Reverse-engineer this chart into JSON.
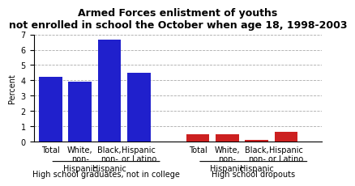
{
  "title_line1": "Armed Forces enlistment of youths",
  "title_line2": "not enrolled in school the October when age 18, 1998-2003",
  "groups": [
    {
      "label": "High school graduates, not in college",
      "categories": [
        "Total",
        "White,\nnon-\nHispanic",
        "Black,\nnon-\nHispanic",
        "Hispanic\nor Latino"
      ],
      "values": [
        4.25,
        3.9,
        6.65,
        4.5
      ],
      "bar_color": "#2020cc"
    },
    {
      "label": "High school dropouts",
      "categories": [
        "Total",
        "White,\nnon-\nHispanic",
        "Black,\nnon-\nHispanic",
        "Hispanic\nor Latino"
      ],
      "values": [
        0.5,
        0.5,
        0.1,
        0.65
      ],
      "bar_color": "#cc2020"
    }
  ],
  "ylabel": "Percent",
  "ylim": [
    0,
    7
  ],
  "yticks": [
    0,
    1,
    2,
    3,
    4,
    5,
    6,
    7
  ],
  "background_color": "#ffffff",
  "grid_color": "#aaaaaa",
  "title_fontsize": 9,
  "axis_fontsize": 7,
  "tick_fontsize": 7,
  "group_label_fontsize": 7
}
